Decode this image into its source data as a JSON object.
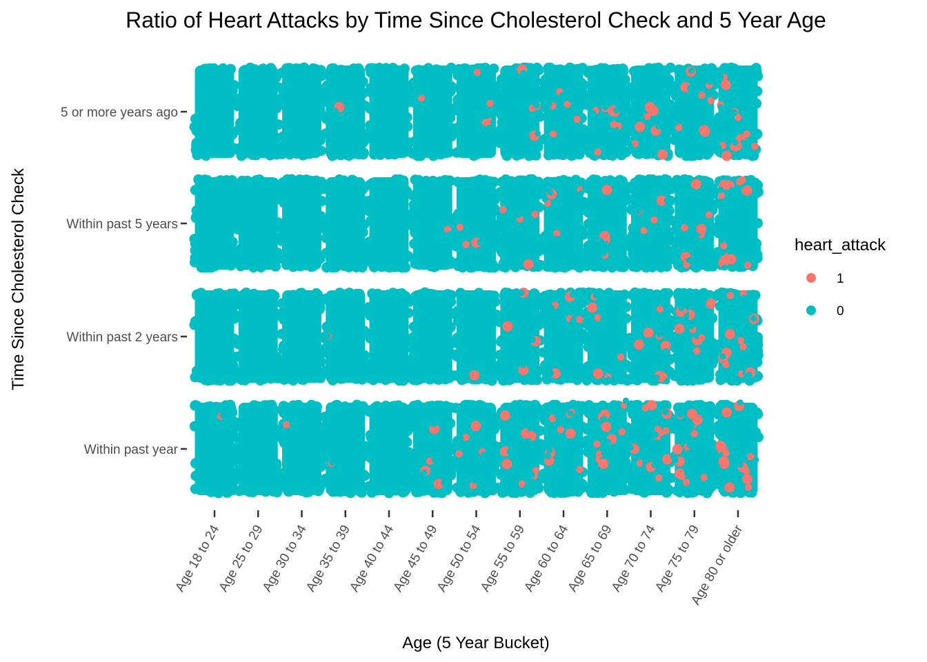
{
  "chart_data": {
    "type": "scatter",
    "variant": "jittered categorical strip plot",
    "title": "Ratio of Heart Attacks by Time Since Cholesterol Check and 5 Year Age",
    "xlabel": "Age (5 Year Bucket)",
    "ylabel": "Time Since Cholesterol Check",
    "x_categories": [
      "Age 18 to 24",
      "Age 25 to 29",
      "Age 30 to 34",
      "Age 35 to 39",
      "Age 40 to 44",
      "Age 45 to 49",
      "Age 50 to 54",
      "Age 55 to 59",
      "Age 60 to 64",
      "Age 65 to 69",
      "Age 70 to 74",
      "Age 75 to 79",
      "Age 80 or older"
    ],
    "y_categories": [
      "Within past year",
      "Within past 2 years",
      "Within past 5 years",
      "5 or more years ago"
    ],
    "legend": {
      "title": "heart_attack",
      "position": "right",
      "entries": [
        {
          "label": "1",
          "color": "#F8766D"
        },
        {
          "label": "0",
          "color": "#00BFC4"
        }
      ]
    },
    "grid": false,
    "series_colors": {
      "1": "#F8766D",
      "0": "#00BFC4"
    },
    "approx_heart_attack_share_by_cell": {
      "Within past year": [
        0.01,
        0.004,
        0.006,
        0.006,
        0.0,
        0.03,
        0.045,
        0.07,
        0.075,
        0.08,
        0.09,
        0.1,
        0.12
      ],
      "Within past 2 years": [
        0.002,
        0.0,
        0.002,
        0.006,
        0.004,
        0.004,
        0.01,
        0.035,
        0.045,
        0.05,
        0.055,
        0.075,
        0.1
      ],
      "Within past 5 years": [
        0.002,
        0.004,
        0.002,
        0.004,
        0.002,
        0.006,
        0.03,
        0.035,
        0.03,
        0.03,
        0.035,
        0.06,
        0.1
      ],
      "5 or more years ago": [
        0.0,
        0.002,
        0.004,
        0.008,
        0.004,
        0.01,
        0.03,
        0.03,
        0.04,
        0.06,
        0.06,
        0.07,
        0.1
      ]
    }
  }
}
